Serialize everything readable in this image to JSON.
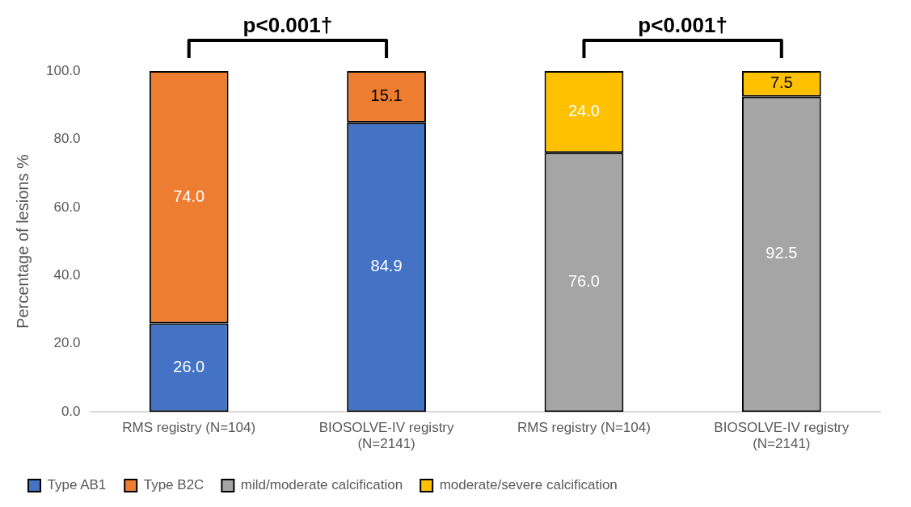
{
  "chart_data": {
    "type": "bar",
    "stacked": true,
    "ylabel": "Percentage of lesions %",
    "categories": [
      "RMS registry (N=104)",
      "BIOSOLVE-IV registry (N=2141)",
      "RMS registry (N=104)",
      "BIOSOLVE-IV registry (N=2141)"
    ],
    "series": [
      {
        "name": "Type AB1",
        "color": "#4472c4",
        "values": [
          26.0,
          84.9,
          null,
          null
        ],
        "value_labels": [
          "26.0",
          "84.9",
          null,
          null
        ]
      },
      {
        "name": "Type B2C",
        "color": "#ed7d31",
        "values": [
          74.0,
          15.1,
          null,
          null
        ],
        "value_labels": [
          "74.0",
          "15.1",
          null,
          null
        ]
      },
      {
        "name": "mild/moderate calcification",
        "color": "#a5a5a5",
        "values": [
          null,
          null,
          76.0,
          92.5
        ],
        "value_labels": [
          null,
          null,
          "76.0",
          "92.5"
        ]
      },
      {
        "name": "moderate/severe calcification",
        "color": "#ffc000",
        "values": [
          null,
          null,
          24.0,
          7.5
        ],
        "value_labels": [
          null,
          null,
          "24.0",
          "7.5"
        ]
      }
    ],
    "ylim": [
      0,
      100
    ],
    "yticks": [
      {
        "value": 0,
        "label": "0.0"
      },
      {
        "value": 20,
        "label": "20.0"
      },
      {
        "value": 40,
        "label": "40.0"
      },
      {
        "value": 60,
        "label": "60.0"
      },
      {
        "value": 80,
        "label": "80.0"
      },
      {
        "value": 100,
        "label": "100.0"
      }
    ],
    "annotations": [
      "p<0.001†",
      "p<0.001†"
    ],
    "grid": false,
    "legend": "bottom"
  }
}
